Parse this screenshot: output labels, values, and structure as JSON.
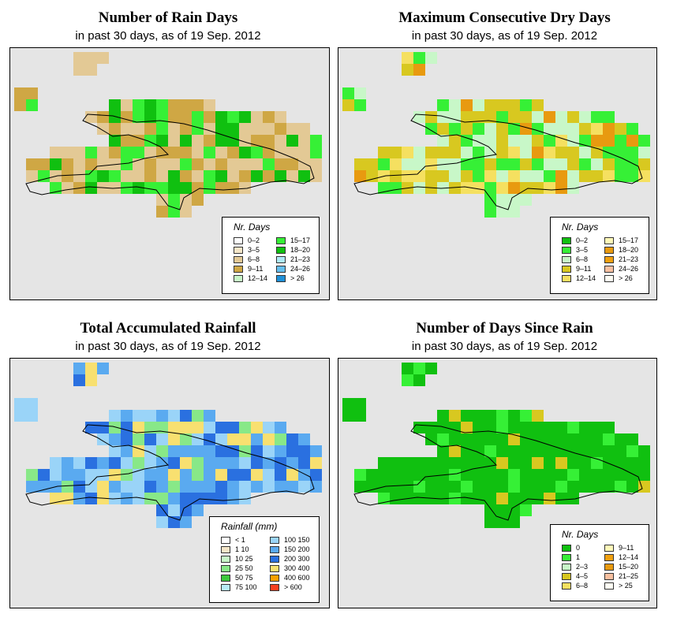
{
  "panels": [
    {
      "id": "rain-days",
      "title": "Number of Rain Days",
      "subtitle": "in past 30 days, as of  19 Sep. 2012",
      "legend": {
        "title": "Nr. Days",
        "columns": 2,
        "items": [
          {
            "label": "0–2",
            "color": "#ffffff"
          },
          {
            "label": "3–5",
            "color": "#f5e6c8"
          },
          {
            "label": "6–8",
            "color": "#e3c995"
          },
          {
            "label": "9–11",
            "color": "#cfa744"
          },
          {
            "label": "12–14",
            "color": "#c8f7c8"
          },
          {
            "label": "15–17",
            "color": "#36f036"
          },
          {
            "label": "18–20",
            "color": "#10c010"
          },
          {
            "label": "21–23",
            "color": "#b0eaf8"
          },
          {
            "label": "24–26",
            "color": "#66bfee"
          },
          {
            "label": "> 26",
            "color": "#1f90d8"
          }
        ]
      }
    },
    {
      "id": "dry-days",
      "title": "Maximum Consecutive Dry Days",
      "subtitle": "in past 30 days, as of  19 Sep. 2012",
      "legend": {
        "title": "Nr. Days",
        "columns": 2,
        "items": [
          {
            "label": "0–2",
            "color": "#10c010"
          },
          {
            "label": "3–5",
            "color": "#36f036"
          },
          {
            "label": "6–8",
            "color": "#c8f7c8"
          },
          {
            "label": "9–11",
            "color": "#d8c820"
          },
          {
            "label": "12–14",
            "color": "#f5e060"
          },
          {
            "label": "15–17",
            "color": "#fff8b8"
          },
          {
            "label": "18–20",
            "color": "#e89a10"
          },
          {
            "label": "21–23",
            "color": "#f0a010"
          },
          {
            "label": "24–26",
            "color": "#f8c0a0"
          },
          {
            "label": "> 26",
            "color": "#fffef4"
          }
        ]
      }
    },
    {
      "id": "rainfall",
      "title": "Total Accumulated Rainfall",
      "subtitle": "in past 30 days, as of  19 Sep. 2012",
      "legend": {
        "title": "Rainfall (mm)",
        "columns": 2,
        "items": [
          {
            "label": "< 1",
            "color": "#ffffff"
          },
          {
            "label": "1   10",
            "color": "#f5e6c8"
          },
          {
            "label": "10   25",
            "color": "#c8f7c8"
          },
          {
            "label": "25   50",
            "color": "#88e888"
          },
          {
            "label": "50   75",
            "color": "#3cc83c"
          },
          {
            "label": "75  100",
            "color": "#b8ecf8"
          },
          {
            "label": "100  150",
            "color": "#9ad4f8"
          },
          {
            "label": "150  200",
            "color": "#5aaaf0"
          },
          {
            "label": "200  300",
            "color": "#2a70e0"
          },
          {
            "label": "300  400",
            "color": "#f8e070"
          },
          {
            "label": "400  600",
            "color": "#f8a000"
          },
          {
            "label": "> 600",
            "color": "#f84020"
          }
        ]
      }
    },
    {
      "id": "since-rain",
      "title": "Number of Days Since Rain",
      "subtitle": "in past 30 days, as of  19 Sep. 2012",
      "legend": {
        "title": "Nr. Days",
        "columns": 2,
        "items": [
          {
            "label": "0",
            "color": "#10c010"
          },
          {
            "label": "1",
            "color": "#36f036"
          },
          {
            "label": "2–3",
            "color": "#c8f7c8"
          },
          {
            "label": "4–5",
            "color": "#d8c820"
          },
          {
            "label": "6–8",
            "color": "#f5e060"
          },
          {
            "label": "9–11",
            "color": "#fff8b8"
          },
          {
            "label": "12–14",
            "color": "#f0a010"
          },
          {
            "label": "15–20",
            "color": "#e89a10"
          },
          {
            "label": "21–25",
            "color": "#f8c0a0"
          },
          {
            "label": "> 25",
            "color": "#fffef4"
          }
        ]
      }
    }
  ]
}
